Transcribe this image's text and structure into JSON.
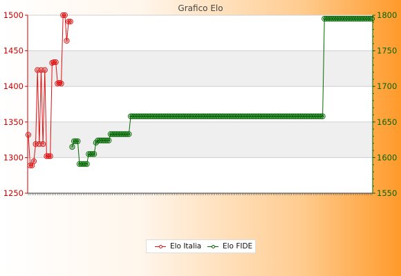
{
  "chart_data": {
    "type": "line",
    "title": "Grafico Elo",
    "left_axis": {
      "ylim": [
        1250,
        1500
      ],
      "ticks": [
        1250,
        1300,
        1350,
        1400,
        1450,
        1500
      ],
      "color": "#cc0000"
    },
    "right_axis": {
      "ylim": [
        1550,
        1800
      ],
      "ticks": [
        1550,
        1600,
        1650,
        1700,
        1750,
        1800
      ],
      "color": "#006600"
    },
    "grid": true,
    "legend_position": "bottom-center",
    "n_points": 189,
    "series": [
      {
        "name": "Elo Italia",
        "axis": "left",
        "color": "#dd1111",
        "points": [
          [
            0,
            1332
          ],
          [
            1,
            1289
          ],
          [
            2,
            1289
          ],
          [
            3,
            1295
          ],
          [
            4,
            1319
          ],
          [
            5,
            1423
          ],
          [
            6,
            1319
          ],
          [
            7,
            1423
          ],
          [
            8,
            1319
          ],
          [
            9,
            1423
          ],
          [
            10,
            1302
          ],
          [
            11,
            1302
          ],
          [
            12,
            1302
          ],
          [
            13,
            1433
          ],
          [
            14,
            1434
          ],
          [
            15,
            1434
          ],
          [
            16,
            1404
          ],
          [
            17,
            1405
          ],
          [
            18,
            1404
          ],
          [
            19,
            1500
          ],
          [
            20,
            1500
          ],
          [
            21,
            1464
          ],
          [
            22,
            1491
          ],
          [
            23,
            1491
          ]
        ]
      },
      {
        "name": "Elo FIDE",
        "axis": "right",
        "color": "#006600",
        "points": [
          [
            24,
            1615
          ],
          [
            25,
            1623
          ],
          [
            26,
            1623
          ],
          [
            27,
            1623
          ],
          [
            28,
            1591
          ],
          [
            29,
            1591
          ],
          [
            30,
            1591
          ],
          [
            31,
            1591
          ],
          [
            32,
            1591
          ],
          [
            33,
            1605
          ],
          [
            34,
            1605
          ],
          [
            35,
            1605
          ],
          [
            36,
            1605
          ],
          [
            37,
            1621
          ],
          [
            38,
            1624
          ],
          [
            39,
            1624
          ],
          [
            40,
            1624
          ],
          [
            41,
            1624
          ],
          [
            42,
            1624
          ],
          [
            43,
            1624
          ],
          [
            44,
            1624
          ],
          [
            45,
            1633
          ],
          [
            46,
            1633
          ],
          [
            47,
            1633
          ],
          [
            48,
            1633
          ],
          [
            49,
            1633
          ],
          [
            50,
            1633
          ],
          [
            51,
            1633
          ],
          [
            52,
            1633
          ],
          [
            53,
            1633
          ],
          [
            54,
            1633
          ],
          [
            55,
            1633
          ],
          [
            56,
            1658
          ],
          [
            161,
            1658
          ],
          [
            162,
            1795
          ],
          [
            188,
            1795
          ]
        ]
      }
    ]
  }
}
